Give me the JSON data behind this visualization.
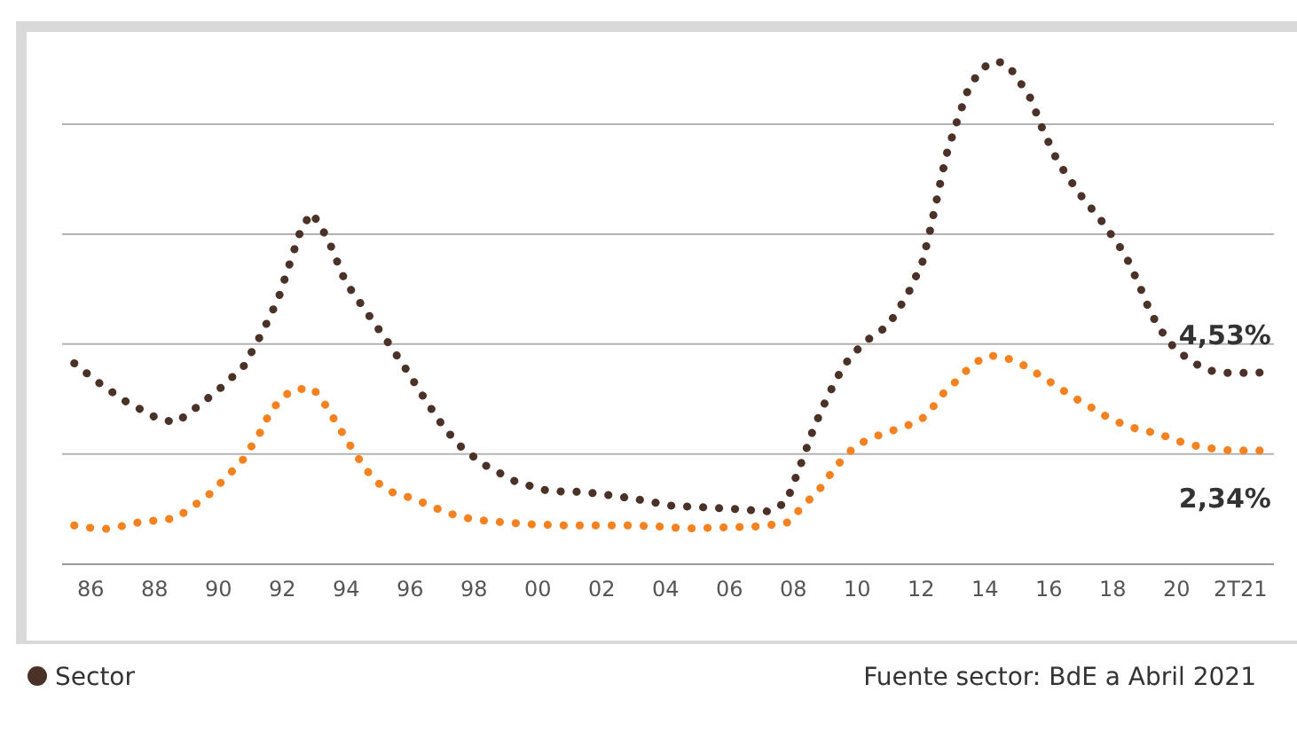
{
  "chart_data": {
    "type": "line",
    "line_style": "dotted",
    "marker": "none",
    "grid": "y",
    "legend": "bottom left",
    "xlim": [
      1985.1,
      2023.05
    ],
    "yticks": [
      {
        "value": 2.24,
        "label": null
      },
      {
        "value": 5.33,
        "label": null
      },
      {
        "value": 8.41,
        "label": null
      },
      {
        "value": 11.5,
        "label": null
      }
    ],
    "tick_labels": "x",
    "xticks": [
      {
        "value": 1986,
        "label": "86"
      },
      {
        "value": 1988,
        "label": "88"
      },
      {
        "value": 1990,
        "label": "90"
      },
      {
        "value": 1992,
        "label": "92"
      },
      {
        "value": 1994,
        "label": "94"
      },
      {
        "value": 1996,
        "label": "96"
      },
      {
        "value": 1998,
        "label": "98"
      },
      {
        "value": 2000,
        "label": "00"
      },
      {
        "value": 2002,
        "label": "02"
      },
      {
        "value": 2004,
        "label": "04"
      },
      {
        "value": 2006,
        "label": "06"
      },
      {
        "value": 2008,
        "label": "08"
      },
      {
        "value": 2010,
        "label": "10"
      },
      {
        "value": 2012,
        "label": "12"
      },
      {
        "value": 2014,
        "label": "14"
      },
      {
        "value": 2016,
        "label": "16"
      },
      {
        "value": 2018,
        "label": "18"
      },
      {
        "value": 2020,
        "label": "20"
      },
      {
        "value": 2022,
        "label": "2T21"
      }
    ],
    "annotations": [
      "Fuente sector: BdE a Abril 2021"
    ],
    "series": [
      {
        "name": "Sector",
        "color": "#4a3228",
        "x": [
          1985.48,
          1986.19,
          1987.07,
          1988.13,
          1988.68,
          1989.41,
          1990.11,
          1990.81,
          1991.37,
          1991.87,
          1992.24,
          1992.61,
          1992.93,
          1993.43,
          1993.98,
          1994.68,
          1995.3,
          1995.85,
          1996.35,
          1996.89,
          1997.48,
          1998.26,
          1999.32,
          2000.35,
          2001.43,
          2002.48,
          2003.54,
          2004.06,
          2005.11,
          2006.17,
          2007.24,
          2007.78,
          2008.31,
          2008.65,
          2009.06,
          2009.57,
          2010.2,
          2010.96,
          2011.57,
          2012.04,
          2012.3,
          2012.54,
          2012.78,
          2013.09,
          2013.46,
          2013.76,
          2014.13,
          2014.56,
          2014.91,
          2015.43,
          2015.83,
          2016.28,
          2016.93,
          2017.68,
          2018.39,
          2018.82,
          2019.2,
          2019.72,
          2020.09,
          2020.5,
          2021.0,
          2021.56,
          2022.07,
          2022.63
        ],
        "values": [
          4.79,
          4.28,
          3.73,
          3.22,
          3.13,
          3.62,
          4.13,
          4.73,
          5.66,
          6.6,
          7.62,
          8.62,
          9.01,
          8.27,
          7.06,
          6.17,
          5.38,
          4.65,
          3.94,
          3.2,
          2.53,
          1.97,
          1.46,
          1.2,
          1.18,
          1.06,
          0.91,
          0.8,
          0.75,
          0.7,
          0.63,
          0.89,
          2.14,
          3.0,
          3.83,
          4.72,
          5.37,
          5.84,
          6.7,
          7.62,
          8.59,
          9.59,
          10.6,
          11.49,
          12.44,
          12.89,
          13.22,
          13.24,
          12.94,
          12.22,
          11.3,
          10.45,
          9.58,
          8.75,
          7.84,
          7.01,
          6.18,
          5.42,
          5.1,
          4.82,
          4.59,
          4.52,
          4.52,
          4.53
        ],
        "value_labels": [
          null,
          null,
          null,
          null,
          null,
          null,
          null,
          null,
          null,
          null,
          null,
          null,
          null,
          null,
          null,
          null,
          null,
          null,
          null,
          null,
          null,
          null,
          null,
          null,
          null,
          null,
          null,
          null,
          null,
          null,
          null,
          null,
          null,
          null,
          null,
          null,
          null,
          null,
          null,
          null,
          null,
          null,
          null,
          null,
          null,
          null,
          null,
          null,
          null,
          null,
          null,
          null,
          null,
          null,
          null,
          null,
          null,
          null,
          null,
          null,
          null,
          null,
          null,
          "4,53%"
        ]
      },
      {
        "color": "#f58220",
        "x": [
          1985.48,
          1986.0,
          1986.57,
          1987.07,
          1987.63,
          1988.13,
          1988.68,
          1989.22,
          1989.81,
          1990.11,
          1990.46,
          1990.81,
          1991.07,
          1991.37,
          1991.57,
          1991.87,
          1992.29,
          1992.93,
          1993.22,
          1993.48,
          1993.74,
          1993.98,
          1994.29,
          1994.65,
          1995.06,
          1995.52,
          1996.09,
          1996.63,
          1997.18,
          1997.68,
          1998.24,
          1998.74,
          1999.79,
          2000.87,
          2001.93,
          2003.02,
          2004.06,
          2004.57,
          2005.65,
          2006.71,
          2007.78,
          2008.13,
          2008.5,
          2008.85,
          2009.17,
          2009.52,
          2009.91,
          2010.39,
          2010.96,
          2011.5,
          2012.04,
          2012.37,
          2012.72,
          2013.09,
          2013.39,
          2013.76,
          2014.15,
          2014.67,
          2015.22,
          2015.72,
          2016.28,
          2016.78,
          2017.33,
          2017.83,
          2018.37,
          2018.89,
          2019.44,
          2019.96,
          2020.5,
          2021.02,
          2021.56,
          2022.07,
          2022.63
        ],
        "values": [
          0.24,
          0.17,
          0.14,
          0.24,
          0.35,
          0.38,
          0.45,
          0.79,
          1.18,
          1.48,
          1.79,
          2.13,
          2.52,
          2.94,
          3.35,
          3.7,
          4.04,
          4.1,
          3.8,
          3.42,
          3.04,
          2.69,
          2.24,
          1.77,
          1.38,
          1.13,
          1.0,
          0.79,
          0.59,
          0.46,
          0.38,
          0.34,
          0.27,
          0.24,
          0.24,
          0.24,
          0.2,
          0.15,
          0.18,
          0.2,
          0.3,
          0.62,
          0.96,
          1.29,
          1.69,
          2.08,
          2.44,
          2.68,
          2.86,
          3.01,
          3.24,
          3.56,
          3.97,
          4.28,
          4.56,
          4.84,
          5.01,
          4.94,
          4.73,
          4.45,
          4.13,
          3.83,
          3.55,
          3.28,
          3.06,
          2.91,
          2.82,
          2.63,
          2.49,
          2.41,
          2.35,
          2.34,
          2.34
        ],
        "value_labels": [
          null,
          null,
          null,
          null,
          null,
          null,
          null,
          null,
          null,
          null,
          null,
          null,
          null,
          null,
          null,
          null,
          null,
          null,
          null,
          null,
          null,
          null,
          null,
          null,
          null,
          null,
          null,
          null,
          null,
          null,
          null,
          null,
          null,
          null,
          null,
          null,
          null,
          null,
          null,
          null,
          null,
          null,
          null,
          null,
          null,
          null,
          null,
          null,
          null,
          null,
          null,
          null,
          null,
          null,
          null,
          null,
          null,
          null,
          null,
          null,
          null,
          null,
          null,
          null,
          null,
          null,
          null,
          null,
          null,
          null,
          null,
          null,
          "2,34%"
        ]
      }
    ]
  }
}
